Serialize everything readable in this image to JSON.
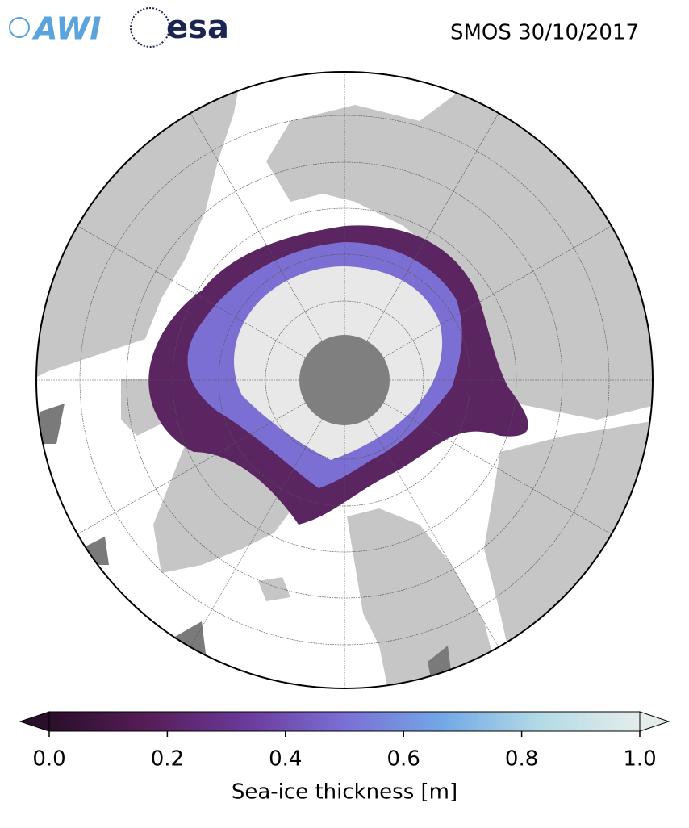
{
  "logos": {
    "awi": "AWI",
    "esa": "esa"
  },
  "title": "SMOS 30/10/2017",
  "colorbar": {
    "label": "Sea-ice thickness [m]",
    "lim": [
      0,
      1
    ],
    "ticks": [
      {
        "value": 0,
        "label": "0.0"
      },
      {
        "value": 0.2,
        "label": "0.2"
      },
      {
        "value": 0.4,
        "label": "0.4"
      },
      {
        "value": 0.6,
        "label": "0.6"
      },
      {
        "value": 0.8,
        "label": "0.8"
      },
      {
        "value": 1,
        "label": "1.0"
      }
    ],
    "colors": [
      "#2a0f2a",
      "#561d58",
      "#6b3a9a",
      "#7b6fd6",
      "#72a8e6",
      "#b4dbe6",
      "#e4ecec"
    ]
  }
}
